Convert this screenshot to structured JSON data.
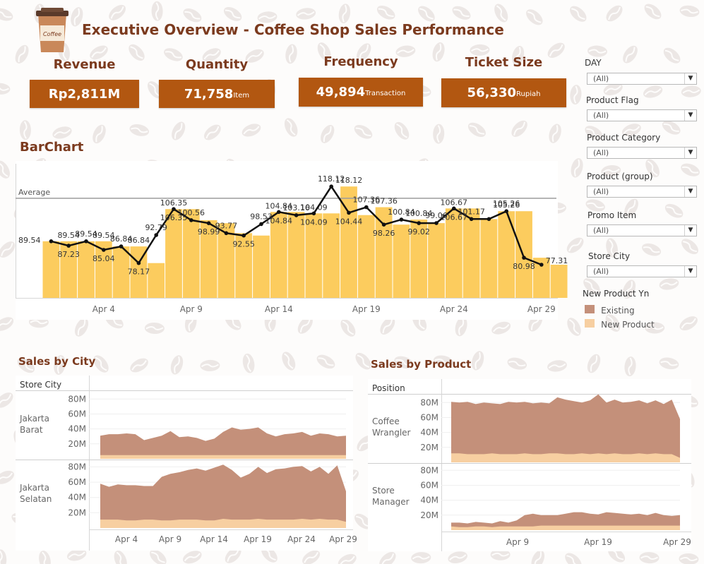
{
  "header": {
    "title": "Executive Overview - Coffee Shop Sales Performance",
    "logo_text": "Coffee"
  },
  "kpis": [
    {
      "label": "Revenue",
      "value": "Rp2,811M",
      "unit": ""
    },
    {
      "label": "Quantity",
      "value": "71,758",
      "unit": "Item"
    },
    {
      "label": "Frequency",
      "value": "49,894",
      "unit": "Transaction"
    },
    {
      "label": "Ticket Size",
      "value": "56,330",
      "unit": "Rupiah"
    }
  ],
  "filters": [
    {
      "label": "DAY",
      "value": "(All)"
    },
    {
      "label": "Product Flag",
      "value": "(All)"
    },
    {
      "label": "Product Category",
      "value": "(All)"
    },
    {
      "label": "Product (group)",
      "value": "(All)"
    },
    {
      "label": "Promo Item",
      "value": "(All)"
    },
    {
      "label": "Store City",
      "value": "(All)"
    }
  ],
  "legend": {
    "title": "New Product Yn",
    "items": [
      {
        "label": "Existing",
        "color": "#c4907a"
      },
      {
        "label": "New Product",
        "color": "#f7cfa1"
      }
    ]
  },
  "colors": {
    "kpi_bg": "#b25711",
    "title": "#7b3a1e",
    "bar": "#fccc5e",
    "line": "#111111",
    "existing": "#c4907a",
    "new_product": "#f7cfa1"
  },
  "barchart": {
    "section_title": "BarChart",
    "average_label": "Average",
    "x_ticks": [
      "Apr 4",
      "Apr 9",
      "Apr 14",
      "Apr 19",
      "Apr 24",
      "Apr 29"
    ]
  },
  "sales_by_city": {
    "section_title": "Sales by City",
    "dim_header": "Store City",
    "rows": [
      {
        "name_lines": [
          "Jakarta",
          "Barat"
        ],
        "y_ticks": [
          "80M",
          "60M",
          "40M",
          "20M"
        ]
      },
      {
        "name_lines": [
          "Jakarta",
          "Selatan"
        ],
        "y_ticks": [
          "80M",
          "60M",
          "40M",
          "20M"
        ]
      }
    ],
    "x_ticks": [
      "Apr 4",
      "Apr 9",
      "Apr 14",
      "Apr 19",
      "Apr 24",
      "Apr 29"
    ]
  },
  "sales_by_product": {
    "section_title": "Sales by Product",
    "dim_header": "Position",
    "rows": [
      {
        "name_lines": [
          "Coffee",
          "Wrangler"
        ],
        "y_ticks": [
          "80M",
          "60M",
          "40M",
          "20M"
        ]
      },
      {
        "name_lines": [
          "Store",
          "Manager"
        ],
        "y_ticks": [
          "80M",
          "60M",
          "40M",
          "20M"
        ]
      }
    ],
    "x_ticks": [
      "Apr 9",
      "Apr 19",
      "Apr 29"
    ]
  },
  "chart_data": [
    {
      "type": "bar",
      "title": "BarChart",
      "x": [
        "Apr 1",
        "Apr 2",
        "Apr 3",
        "Apr 4",
        "Apr 5",
        "Apr 6",
        "Apr 7",
        "Apr 8",
        "Apr 9",
        "Apr 10",
        "Apr 11",
        "Apr 12",
        "Apr 13",
        "Apr 14",
        "Apr 15",
        "Apr 16",
        "Apr 17",
        "Apr 18",
        "Apr 19",
        "Apr 20",
        "Apr 21",
        "Apr 22",
        "Apr 23",
        "Apr 24",
        "Apr 25",
        "Apr 26",
        "Apr 27",
        "Apr 28",
        "Apr 29",
        "Apr 30"
      ],
      "bar_values": [
        89.54,
        89.54,
        89.54,
        89.54,
        86.84,
        86.84,
        78.17,
        106.35,
        106.35,
        100.56,
        98.99,
        93.77,
        92.55,
        104.84,
        104.84,
        104.09,
        104.09,
        118.12,
        103.2,
        107.36,
        98.26,
        100.84,
        99.02,
        106.67,
        106.67,
        101.17,
        105.26,
        105.26,
        80.98,
        77.31
      ],
      "bar_labels": [
        "",
        "89.54",
        "",
        "89.54",
        "",
        "86.84",
        "",
        "106.35",
        "",
        "",
        "",
        "",
        "",
        "104.84",
        "",
        "104.09",
        "",
        "118.12",
        "",
        "107.36",
        "",
        "100.84",
        "",
        "106.67",
        "",
        "",
        "105.26",
        "",
        "",
        ""
      ],
      "line_values": [
        89.54,
        87.23,
        89.54,
        85.04,
        86.84,
        78.17,
        92.79,
        106.35,
        100.56,
        98.99,
        93.77,
        92.55,
        98.53,
        104.84,
        103.16,
        104.09,
        118.12,
        104.44,
        107.36,
        98.26,
        100.84,
        99.02,
        99.06,
        106.67,
        101.17,
        101.17,
        105.26,
        80.98,
        77.31,
        77.31
      ],
      "line_labels": [
        "89.54",
        "87.23",
        "89.54",
        "85.04",
        "86.84",
        "78.17",
        "92.79",
        "106.35",
        "100.56",
        "98.99",
        "93.77",
        "92.55",
        "98.53",
        "104.84",
        "103.16",
        "104.09",
        "118.12",
        "104.44",
        "107.36",
        "98.26",
        "100.84",
        "99.02",
        "99.06",
        "106.67",
        "101.17",
        "",
        "105.26",
        "80.98",
        "77.31",
        ""
      ],
      "average": 112,
      "ylim": [
        60,
        130
      ]
    },
    {
      "type": "area",
      "title": "Sales by City",
      "panels": [
        {
          "name": "Jakarta Barat",
          "existing": [
            31,
            33,
            33,
            34,
            33,
            25,
            28,
            31,
            37,
            29,
            30,
            28,
            24,
            27,
            36,
            42,
            39,
            40,
            42,
            34,
            30,
            33,
            34,
            36,
            31,
            34,
            33,
            30,
            31
          ],
          "new_product": [
            5,
            5,
            5,
            5,
            5,
            5,
            5,
            5,
            5,
            5,
            5,
            5,
            5,
            5,
            5,
            5,
            5,
            5,
            5,
            5,
            5,
            5,
            5,
            5,
            5,
            5,
            5,
            5,
            5
          ]
        },
        {
          "name": "Jakarta Selatan",
          "existing": [
            58,
            54,
            57,
            56,
            56,
            55,
            55,
            67,
            71,
            73,
            76,
            78,
            75,
            79,
            83,
            76,
            66,
            71,
            80,
            72,
            77,
            78,
            80,
            81,
            74,
            80,
            71,
            82,
            48
          ],
          "new_product": [
            11,
            11,
            11,
            10,
            10,
            11,
            11,
            10,
            10,
            11,
            11,
            11,
            10,
            10,
            12,
            11,
            11,
            11,
            12,
            11,
            11,
            11,
            11,
            12,
            11,
            12,
            11,
            11,
            8
          ]
        }
      ],
      "ylim": [
        0,
        85
      ]
    },
    {
      "type": "area",
      "title": "Sales by Product",
      "panels": [
        {
          "name": "Coffee Wrangler",
          "existing": [
            81,
            80,
            81,
            78,
            80,
            79,
            78,
            81,
            80,
            81,
            79,
            80,
            79,
            87,
            84,
            82,
            80,
            83,
            91,
            80,
            84,
            80,
            81,
            83,
            79,
            83,
            78,
            84,
            58
          ],
          "new_product": [
            12,
            12,
            11,
            11,
            11,
            12,
            11,
            11,
            11,
            12,
            11,
            11,
            12,
            12,
            11,
            11,
            12,
            11,
            12,
            11,
            12,
            11,
            11,
            12,
            11,
            12,
            11,
            11,
            6
          ]
        },
        {
          "name": "Store Manager",
          "existing": [
            10,
            10,
            9,
            11,
            10,
            9,
            12,
            10,
            13,
            20,
            22,
            20,
            20,
            20,
            22,
            24,
            24,
            22,
            21,
            24,
            23,
            22,
            21,
            22,
            20,
            23,
            20,
            19,
            20
          ],
          "new_product": [
            5,
            4,
            4,
            5,
            5,
            4,
            5,
            5,
            5,
            5,
            5,
            6,
            6,
            6,
            6,
            6,
            6,
            6,
            6,
            6,
            6,
            6,
            6,
            6,
            6,
            6,
            6,
            6,
            6
          ]
        }
      ],
      "ylim": [
        0,
        85
      ]
    }
  ]
}
